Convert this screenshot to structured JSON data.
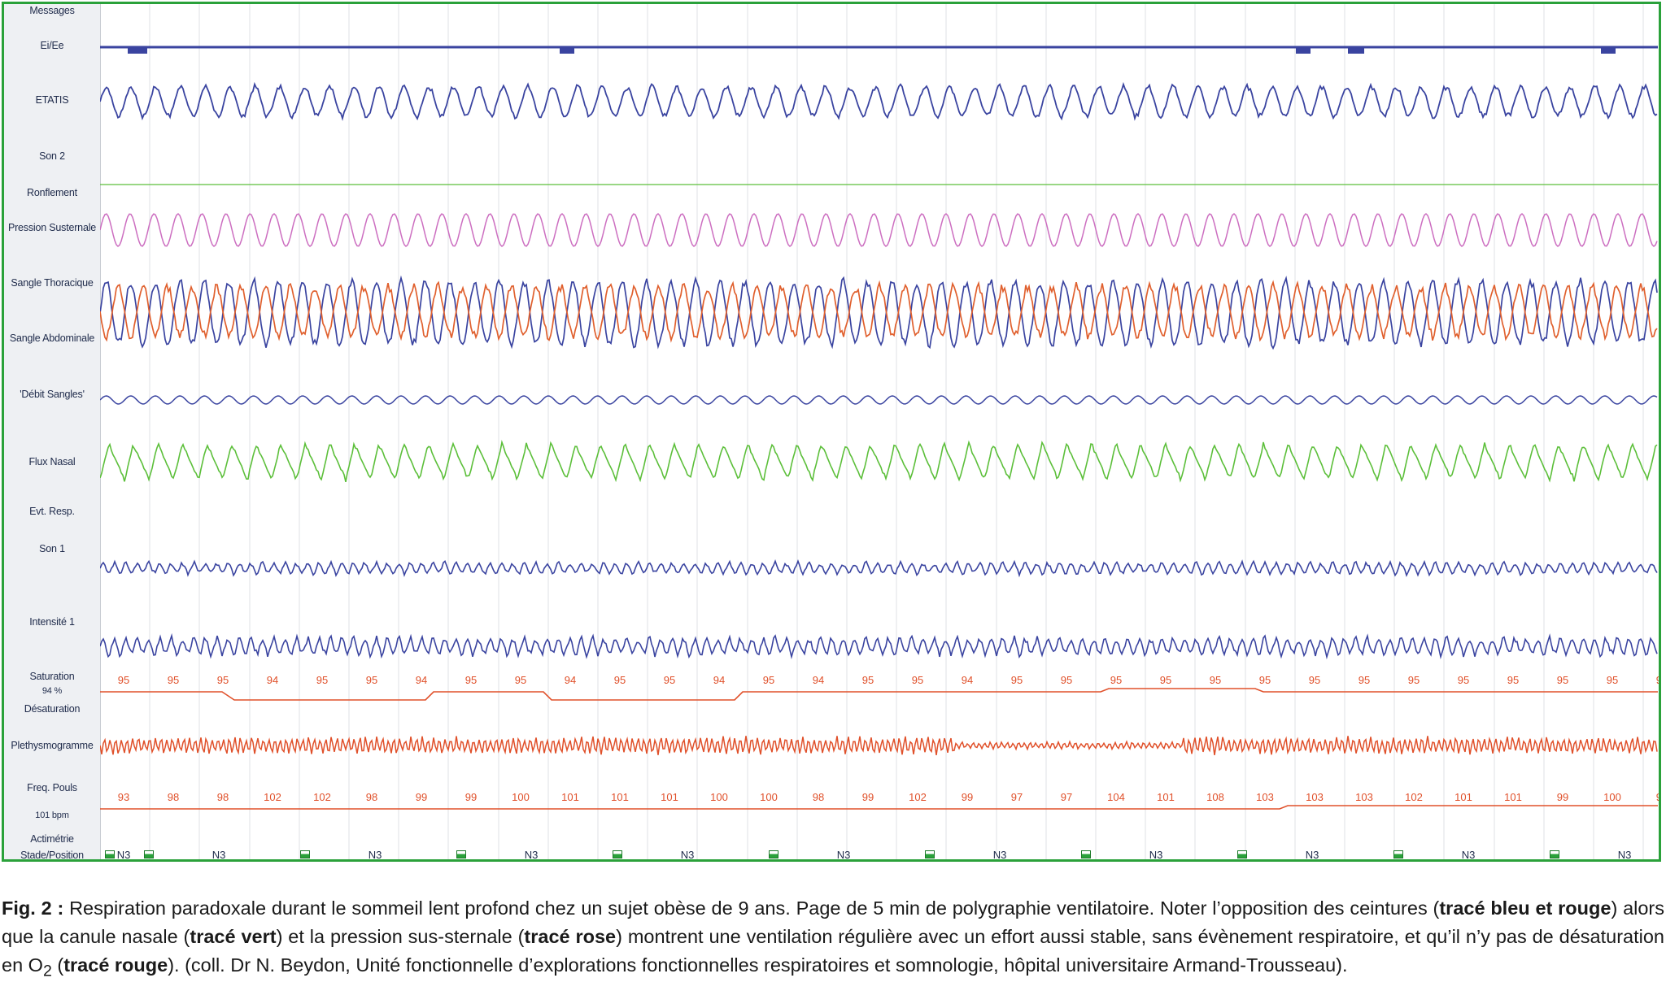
{
  "channels": {
    "messages": "Messages",
    "ei_ee": "Ei/Ee",
    "etatis": "ETATIS",
    "son2": "Son 2",
    "ronflement": "Ronflement",
    "pression": "Pression Susternale",
    "thoracique": "Sangle Thoracique",
    "abdominale": "Sangle Abdominale",
    "debit": "'Débit Sangles'",
    "flux": "Flux Nasal",
    "evt": "Evt. Resp.",
    "son1": "Son 1",
    "intensite": "Intensité 1",
    "saturation": "Saturation",
    "saturation_value": "94 %",
    "desaturation": "Désaturation",
    "pleth": "Plethysmogramme",
    "pouls": "Freq. Pouls",
    "pouls_value": "101 bpm",
    "actimetrie": "Actimétrie",
    "stade": "Stade/Position"
  },
  "saturation_values": [
    "95",
    "95",
    "95",
    "94",
    "95",
    "95",
    "94",
    "95",
    "95",
    "94",
    "95",
    "95",
    "94",
    "95",
    "94",
    "95",
    "95",
    "94",
    "95",
    "95",
    "95",
    "95",
    "95",
    "95",
    "95",
    "95",
    "95",
    "95",
    "95",
    "95",
    "95",
    "95"
  ],
  "pulse_values": [
    "93",
    "98",
    "98",
    "102",
    "102",
    "98",
    "99",
    "99",
    "100",
    "101",
    "101",
    "101",
    "100",
    "100",
    "98",
    "99",
    "102",
    "99",
    "97",
    "97",
    "104",
    "101",
    "108",
    "103",
    "103",
    "103",
    "102",
    "101",
    "101",
    "99",
    "100",
    "98"
  ],
  "stage_label": "N3",
  "colors": {
    "frame": "#2aa13a",
    "blue": "#3a44a0",
    "pink": "#cc6ec0",
    "orange": "#e0602e",
    "green": "#5cbf3a",
    "red": "#e0502a"
  },
  "caption": {
    "fig": "Fig. 2 :",
    "t1": " Respiration paradoxale durant le sommeil lent profond chez un sujet obèse de 9 ans. Page de 5 min de polygraphie ventilatoire. Noter l’opposition des ceintures (",
    "b1": "tracé bleu et rouge",
    "t2": ") alors que la canule nasale (",
    "b2": "tracé vert",
    "t3": ") et la pression sus-sternale (",
    "b3": "tracé rose",
    "t4": ") montrent une ventilation régulière avec un effort aussi stable, sans évènement respiratoire, et qu’il n’y pas de désaturation en O",
    "sub": "2",
    "t5": " (",
    "b4": "tracé rouge",
    "t6": "). (coll. Dr N. Beydon, Unité fonctionnelle d’explorations fonctionnelles respiratoires et somnologie, hôpital universitaire Armand-Trousseau)."
  }
}
